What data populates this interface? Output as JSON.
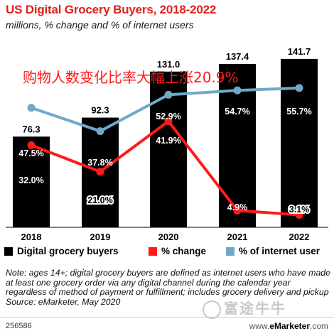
{
  "header": {
    "title": "US Digital Grocery Buyers, 2018-2022",
    "subtitle": "millions, % change and % of internet users"
  },
  "overlay_text": "购物人数变化比率大幅上涨20.9%",
  "chart_data": {
    "type": "bar",
    "categories": [
      "2018",
      "2019",
      "2020",
      "2021",
      "2022"
    ],
    "ylim": [
      0,
      150
    ],
    "grid": false,
    "legend_position": "bottom",
    "series": [
      {
        "name": "Digital grocery buyers",
        "kind": "bar",
        "color": "#000000",
        "values": [
          76.3,
          92.3,
          131.0,
          137.4,
          141.7
        ],
        "labels": [
          "76.3",
          "92.3",
          "131.0",
          "137.4",
          "141.7"
        ]
      },
      {
        "name": "% change",
        "kind": "line",
        "color": "#ff1a1a",
        "values": [
          32.0,
          21.0,
          41.9,
          4.9,
          3.1
        ],
        "labels": [
          "32.0%",
          "21.0%",
          "41.9%",
          "4.9%",
          "3.1%"
        ]
      },
      {
        "name": "% of internet user",
        "kind": "line",
        "color": "#70a8c8",
        "values": [
          47.5,
          37.8,
          52.9,
          54.7,
          55.7
        ],
        "labels": [
          "47.5%",
          "37.8%",
          "52.9%",
          "54.7%",
          "55.7%"
        ]
      }
    ]
  },
  "legend": {
    "items": [
      "Digital grocery buyers",
      "% change",
      "% of internet user"
    ]
  },
  "notes": {
    "note": "Note: ages 14+; digital grocery buyers are defined as internet users who have made at least one grocery order via any digital channel during the calendar year regardless of method of payment or fulfillment; includes grocery delivery and pickup",
    "source": "Source: eMarketer, May 2020"
  },
  "footer": {
    "id": "256586",
    "brand_prefix": "www.",
    "brand_name": "eMarketer",
    "brand_suffix": ".com"
  },
  "watermark": {
    "text": "富途牛牛"
  }
}
